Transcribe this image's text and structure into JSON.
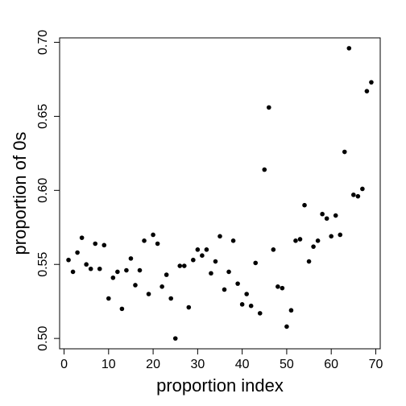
{
  "chart_data": {
    "type": "scatter",
    "title": "",
    "xlabel": "proportion index",
    "ylabel": "proportion of 0s",
    "xlim": [
      -1,
      71
    ],
    "ylim": [
      0.493,
      0.703
    ],
    "xticks": [
      0,
      10,
      20,
      30,
      40,
      50,
      60,
      70
    ],
    "yticks": [
      0.5,
      0.55,
      0.6,
      0.65,
      0.7
    ],
    "xtick_labels": [
      "0",
      "10",
      "20",
      "30",
      "40",
      "50",
      "60",
      "70"
    ],
    "ytick_labels": [
      "0.50",
      "0.55",
      "0.60",
      "0.65",
      "0.70"
    ],
    "grid": false,
    "legend": "none",
    "point_color": "#000000",
    "points": [
      [
        1,
        0.553
      ],
      [
        2,
        0.545
      ],
      [
        3,
        0.558
      ],
      [
        4,
        0.568
      ],
      [
        5,
        0.55
      ],
      [
        6,
        0.547
      ],
      [
        7,
        0.564
      ],
      [
        8,
        0.547
      ],
      [
        9,
        0.563
      ],
      [
        10,
        0.527
      ],
      [
        11,
        0.541
      ],
      [
        12,
        0.545
      ],
      [
        13,
        0.52
      ],
      [
        14,
        0.546
      ],
      [
        15,
        0.554
      ],
      [
        16,
        0.536
      ],
      [
        17,
        0.546
      ],
      [
        18,
        0.566
      ],
      [
        19,
        0.53
      ],
      [
        20,
        0.57
      ],
      [
        21,
        0.564
      ],
      [
        22,
        0.535
      ],
      [
        23,
        0.543
      ],
      [
        24,
        0.527
      ],
      [
        25,
        0.5
      ],
      [
        26,
        0.549
      ],
      [
        27,
        0.549
      ],
      [
        28,
        0.521
      ],
      [
        29,
        0.553
      ],
      [
        30,
        0.56
      ],
      [
        31,
        0.556
      ],
      [
        32,
        0.56
      ],
      [
        33,
        0.544
      ],
      [
        34,
        0.552
      ],
      [
        35,
        0.569
      ],
      [
        36,
        0.533
      ],
      [
        37,
        0.545
      ],
      [
        38,
        0.566
      ],
      [
        39,
        0.537
      ],
      [
        40,
        0.523
      ],
      [
        41,
        0.53
      ],
      [
        42,
        0.522
      ],
      [
        43,
        0.551
      ],
      [
        44,
        0.517
      ],
      [
        45,
        0.614
      ],
      [
        46,
        0.656
      ],
      [
        47,
        0.56
      ],
      [
        48,
        0.535
      ],
      [
        49,
        0.534
      ],
      [
        50,
        0.508
      ],
      [
        51,
        0.519
      ],
      [
        52,
        0.566
      ],
      [
        53,
        0.567
      ],
      [
        54,
        0.59
      ],
      [
        55,
        0.552
      ],
      [
        56,
        0.562
      ],
      [
        57,
        0.566
      ],
      [
        58,
        0.584
      ],
      [
        59,
        0.581
      ],
      [
        60,
        0.569
      ],
      [
        61,
        0.583
      ],
      [
        62,
        0.57
      ],
      [
        63,
        0.626
      ],
      [
        64,
        0.696
      ],
      [
        65,
        0.597
      ],
      [
        66,
        0.596
      ],
      [
        67,
        0.601
      ],
      [
        68,
        0.667
      ],
      [
        69,
        0.673
      ]
    ]
  }
}
